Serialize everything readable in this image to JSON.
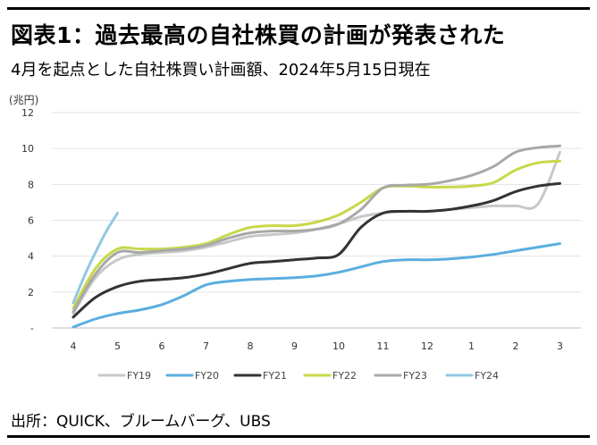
{
  "header": {
    "title": "図表1：過去最高の自社株買の計画が発表された",
    "subtitle": "4月を起点とした自社株買い計画額、2024年5月15日現在"
  },
  "footer": {
    "source": "出所：QUICK、ブルームバーグ、UBS"
  },
  "chart_data": {
    "type": "line",
    "ylabel": "(兆円)",
    "ylim": [
      0,
      12
    ],
    "yticks": [
      0,
      2,
      4,
      6,
      8,
      10,
      12
    ],
    "ytick_labels": [
      "-",
      "2",
      "4",
      "6",
      "8",
      "10",
      "12"
    ],
    "categories": [
      "4",
      "5",
      "6",
      "7",
      "8",
      "9",
      "10",
      "11",
      "12",
      "1",
      "2",
      "3"
    ],
    "grid": true,
    "legend_position": "bottom",
    "series": [
      {
        "name": "FY19",
        "color": "#c8c8c8",
        "x": [
          0,
          0.5,
          1,
          1.5,
          2,
          2.5,
          3,
          3.5,
          4,
          4.5,
          5,
          5.5,
          6,
          6.5,
          7,
          7.5,
          8,
          8.5,
          9,
          9.5,
          10,
          10.5,
          11
        ],
        "y": [
          0.8,
          2.8,
          3.8,
          4.1,
          4.2,
          4.3,
          4.5,
          4.8,
          5.1,
          5.2,
          5.3,
          5.5,
          5.8,
          6.2,
          6.4,
          6.5,
          6.5,
          6.6,
          6.7,
          6.8,
          6.8,
          6.9,
          9.8
        ]
      },
      {
        "name": "FY20",
        "color": "#5aaee0",
        "x": [
          0,
          0.5,
          1,
          1.5,
          2,
          2.5,
          3,
          3.5,
          4,
          4.5,
          5,
          5.5,
          6,
          6.5,
          7,
          7.5,
          8,
          8.5,
          9,
          9.5,
          10,
          10.5,
          11
        ],
        "y": [
          0.05,
          0.5,
          0.8,
          1.0,
          1.3,
          1.8,
          2.4,
          2.6,
          2.7,
          2.75,
          2.8,
          2.9,
          3.1,
          3.4,
          3.7,
          3.8,
          3.8,
          3.85,
          3.95,
          4.1,
          4.3,
          4.5,
          4.7
        ]
      },
      {
        "name": "FY21",
        "color": "#333333",
        "x": [
          0,
          0.5,
          1,
          1.5,
          2,
          2.5,
          3,
          3.5,
          4,
          4.5,
          5,
          5.5,
          6,
          6.5,
          7,
          7.5,
          8,
          8.5,
          9,
          9.5,
          10,
          10.5,
          11
        ],
        "y": [
          0.6,
          1.7,
          2.3,
          2.6,
          2.7,
          2.8,
          3.0,
          3.3,
          3.6,
          3.7,
          3.8,
          3.9,
          4.1,
          5.6,
          6.4,
          6.5,
          6.5,
          6.6,
          6.8,
          7.1,
          7.6,
          7.9,
          8.05
        ]
      },
      {
        "name": "FY22",
        "color": "#c8d84a",
        "x": [
          0,
          0.5,
          1,
          1.5,
          2,
          2.5,
          3,
          3.5,
          4,
          4.5,
          5,
          5.5,
          6,
          6.5,
          7,
          7.5,
          8,
          8.5,
          9,
          9.5,
          10,
          10.5,
          11
        ],
        "y": [
          1.1,
          3.3,
          4.4,
          4.4,
          4.4,
          4.5,
          4.7,
          5.2,
          5.6,
          5.7,
          5.7,
          5.9,
          6.3,
          7.0,
          7.8,
          7.9,
          7.85,
          7.85,
          7.9,
          8.1,
          8.8,
          9.2,
          9.3
        ]
      },
      {
        "name": "FY23",
        "color": "#a8a8a8",
        "x": [
          0,
          0.5,
          1,
          1.5,
          2,
          2.5,
          3,
          3.5,
          4,
          4.5,
          5,
          5.5,
          6,
          6.5,
          7,
          7.5,
          8,
          8.5,
          9,
          9.5,
          10,
          10.5,
          11
        ],
        "y": [
          0.9,
          3.0,
          4.2,
          4.2,
          4.3,
          4.4,
          4.6,
          5.0,
          5.3,
          5.4,
          5.4,
          5.5,
          5.8,
          6.6,
          7.8,
          7.95,
          8.0,
          8.2,
          8.5,
          9.0,
          9.8,
          10.05,
          10.15
        ]
      },
      {
        "name": "FY24",
        "color": "#92c7e3",
        "x": [
          0,
          0.25,
          0.5,
          0.75,
          1
        ],
        "y": [
          1.4,
          2.9,
          4.2,
          5.4,
          6.4
        ]
      }
    ]
  }
}
